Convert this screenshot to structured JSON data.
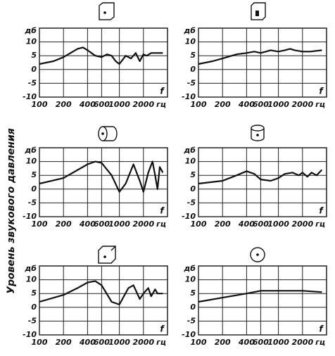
{
  "side_label": "Уровень звукового давления",
  "chart_data": [
    {
      "type": "line",
      "ylabel": "дб",
      "x_unit": "гц",
      "annotation": "f",
      "color": "#111",
      "log_x": true,
      "grid": true,
      "xlim": [
        100,
        4000
      ],
      "ylim": [
        -10,
        15
      ],
      "xticks": [
        100,
        200,
        400,
        600,
        1000,
        2000
      ],
      "yticks": [
        10,
        5,
        0,
        -5,
        -10
      ],
      "x": [
        100,
        150,
        200,
        300,
        350,
        400,
        500,
        600,
        700,
        800,
        900,
        1000,
        1200,
        1400,
        1600,
        1800,
        2000,
        2200,
        2500,
        3000,
        3500
      ],
      "values": [
        2,
        3,
        4.5,
        7.5,
        8,
        7,
        5,
        4.5,
        5.5,
        5,
        3,
        2,
        5,
        4,
        6,
        3,
        5.5,
        5,
        6,
        6,
        6
      ]
    },
    {
      "type": "line",
      "ylabel": "дб",
      "x_unit": "гц",
      "annotation": "f",
      "color": "#111",
      "log_x": true,
      "grid": true,
      "xlim": [
        100,
        4000
      ],
      "ylim": [
        -10,
        15
      ],
      "xticks": [
        100,
        200,
        400,
        600,
        1000,
        2000
      ],
      "yticks": [
        10,
        5,
        0,
        -5,
        -10
      ],
      "x": [
        100,
        150,
        200,
        300,
        400,
        500,
        600,
        700,
        800,
        1000,
        1200,
        1400,
        1600,
        2000,
        2500,
        3500
      ],
      "values": [
        2,
        3,
        4,
        5.5,
        6,
        6.5,
        6,
        6.5,
        7,
        6.5,
        7,
        7.5,
        7,
        6.5,
        6.5,
        7
      ]
    },
    {
      "type": "line",
      "ylabel": "дб",
      "x_unit": "гц",
      "annotation": "f",
      "color": "#111",
      "log_x": true,
      "grid": true,
      "xlim": [
        100,
        4000
      ],
      "ylim": [
        -10,
        15
      ],
      "xticks": [
        100,
        200,
        400,
        600,
        1000,
        2000
      ],
      "yticks": [
        10,
        5,
        0,
        -5,
        -10
      ],
      "x": [
        100,
        200,
        400,
        500,
        600,
        800,
        1000,
        1200,
        1500,
        1800,
        2000,
        2300,
        2600,
        2800,
        3000,
        3200,
        3500
      ],
      "values": [
        2,
        4,
        9,
        10,
        9.5,
        5,
        -1,
        2,
        9,
        3,
        -1,
        6,
        10,
        5,
        0,
        8,
        6
      ]
    },
    {
      "type": "line",
      "ylabel": "дб",
      "x_unit": "гц",
      "annotation": "f",
      "color": "#111",
      "log_x": true,
      "grid": true,
      "xlim": [
        100,
        4000
      ],
      "ylim": [
        -10,
        15
      ],
      "xticks": [
        100,
        200,
        400,
        600,
        1000,
        2000
      ],
      "yticks": [
        10,
        5,
        0,
        -5,
        -10
      ],
      "x": [
        100,
        200,
        300,
        400,
        500,
        600,
        800,
        1000,
        1200,
        1500,
        1800,
        2000,
        2300,
        2600,
        3000,
        3500
      ],
      "values": [
        2,
        3,
        5,
        6.5,
        5.5,
        3.5,
        3,
        4,
        5.5,
        6,
        5,
        6,
        4.5,
        6,
        5,
        7
      ]
    },
    {
      "type": "line",
      "ylabel": "дб",
      "x_unit": "гц",
      "annotation": "f",
      "color": "#111",
      "log_x": true,
      "grid": true,
      "xlim": [
        100,
        4000
      ],
      "ylim": [
        -10,
        15
      ],
      "xticks": [
        100,
        200,
        400,
        600,
        1000,
        2000
      ],
      "yticks": [
        10,
        5,
        0,
        -5,
        -10
      ],
      "x": [
        100,
        200,
        300,
        400,
        500,
        600,
        800,
        1000,
        1300,
        1500,
        1800,
        2000,
        2300,
        2500,
        2800,
        3000,
        3500
      ],
      "values": [
        2,
        4.5,
        7,
        9,
        9.5,
        8,
        2,
        1,
        7,
        8,
        3,
        5,
        7,
        4,
        6.5,
        5,
        5
      ]
    },
    {
      "type": "line",
      "ylabel": "дб",
      "x_unit": "гц",
      "annotation": "f",
      "color": "#111",
      "log_x": true,
      "grid": true,
      "xlim": [
        100,
        4000
      ],
      "ylim": [
        -10,
        15
      ],
      "xticks": [
        100,
        200,
        400,
        600,
        1000,
        2000
      ],
      "yticks": [
        10,
        5,
        0,
        -5,
        -10
      ],
      "x": [
        100,
        200,
        400,
        600,
        1000,
        2000,
        3500
      ],
      "values": [
        2,
        3.5,
        5,
        6,
        6,
        6,
        5.5
      ]
    }
  ]
}
